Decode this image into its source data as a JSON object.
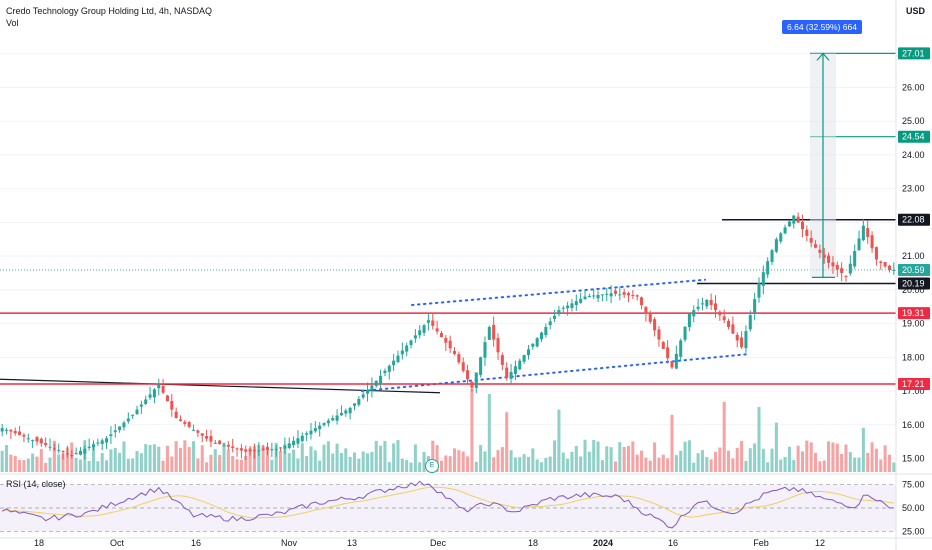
{
  "header": {
    "title": "Credo Technology Group Holding Ltd, 4h, NASDAQ",
    "volume_label": "Vol",
    "currency": "USD",
    "rsi_label": "RSI (14, close)"
  },
  "measure_box": {
    "label": "6.64 (32.59%) 664"
  },
  "earnings_marker": {
    "label": "E"
  },
  "colors": {
    "up": "#26a69a",
    "down": "#ef5350",
    "up_vol": "#8fd1c8",
    "down_vol": "#f5a3a3",
    "support": "#ef2b43",
    "channel": "#2962ff",
    "rsi": "#7e57c2",
    "rsi_ma": "#f0d060",
    "measure": "#2962ff",
    "target": "#089981"
  },
  "chart_data": {
    "type": "candlestick",
    "symbol": "Credo Technology Group Holding Ltd",
    "interval": "4h",
    "exchange": "NASDAQ",
    "y_axis": {
      "ticks": [
        15.0,
        16.0,
        17.0,
        18.0,
        19.0,
        20.0,
        21.0,
        22.0,
        23.0,
        24.0,
        25.0,
        26.0,
        27.0
      ],
      "range": [
        14.6,
        28.0
      ],
      "unit": "USD"
    },
    "x_axis": {
      "ticks": [
        "18",
        "Oct",
        "16",
        "Nov",
        "13",
        "Dec",
        "18",
        "2024",
        "16",
        "Feb",
        "12"
      ]
    },
    "price_tags": [
      {
        "value": "27.01",
        "style": "target"
      },
      {
        "value": "24.54",
        "style": "target"
      },
      {
        "value": "22.08",
        "style": "dark"
      },
      {
        "value": "20.59",
        "style": "current"
      },
      {
        "value": "20.19",
        "style": "dark"
      },
      {
        "value": "19.31",
        "style": "support"
      },
      {
        "value": "17.21",
        "style": "support"
      }
    ],
    "horizontal_levels": [
      {
        "value": 22.08,
        "style": "dark"
      },
      {
        "value": 20.19,
        "style": "dark"
      },
      {
        "value": 19.31,
        "style": "support"
      },
      {
        "value": 17.21,
        "style": "support"
      },
      {
        "value": 27.01,
        "style": "target"
      },
      {
        "value": 24.54,
        "style": "target"
      }
    ],
    "measure": {
      "from": 20.37,
      "to": 27.01,
      "change": 6.64,
      "percent": 32.59
    },
    "anchors": [
      {
        "i": 0,
        "p": 15.9
      },
      {
        "i": 8,
        "p": 15.5
      },
      {
        "i": 16,
        "p": 15.1
      },
      {
        "i": 24,
        "p": 15.6
      },
      {
        "i": 30,
        "p": 16.3
      },
      {
        "i": 36,
        "p": 17.2
      },
      {
        "i": 40,
        "p": 16.2
      },
      {
        "i": 48,
        "p": 15.5
      },
      {
        "i": 56,
        "p": 15.2
      },
      {
        "i": 64,
        "p": 15.3
      },
      {
        "i": 72,
        "p": 15.9
      },
      {
        "i": 80,
        "p": 16.5
      },
      {
        "i": 86,
        "p": 17.3
      },
      {
        "i": 92,
        "p": 18.2
      },
      {
        "i": 98,
        "p": 19.1
      },
      {
        "i": 104,
        "p": 18.1
      },
      {
        "i": 108,
        "p": 17.1
      },
      {
        "i": 112,
        "p": 18.9
      },
      {
        "i": 116,
        "p": 17.4
      },
      {
        "i": 122,
        "p": 18.4
      },
      {
        "i": 128,
        "p": 19.4
      },
      {
        "i": 134,
        "p": 19.8
      },
      {
        "i": 140,
        "p": 19.9
      },
      {
        "i": 146,
        "p": 19.8
      },
      {
        "i": 150,
        "p": 18.8
      },
      {
        "i": 154,
        "p": 17.7
      },
      {
        "i": 158,
        "p": 19.3
      },
      {
        "i": 162,
        "p": 19.7
      },
      {
        "i": 166,
        "p": 19.1
      },
      {
        "i": 170,
        "p": 18.3
      },
      {
        "i": 174,
        "p": 20.2
      },
      {
        "i": 178,
        "p": 21.5
      },
      {
        "i": 182,
        "p": 22.2
      },
      {
        "i": 186,
        "p": 21.4
      },
      {
        "i": 190,
        "p": 20.8
      },
      {
        "i": 194,
        "p": 20.4
      },
      {
        "i": 198,
        "p": 21.9
      },
      {
        "i": 201,
        "p": 20.9
      },
      {
        "i": 204,
        "p": 20.59
      }
    ],
    "volume_spikes": [
      {
        "i": 108,
        "v": 3.2
      },
      {
        "i": 112,
        "v": 3.0
      },
      {
        "i": 116,
        "v": 2.3
      },
      {
        "i": 128,
        "v": 2.4
      },
      {
        "i": 154,
        "v": 2.2
      },
      {
        "i": 166,
        "v": 2.7
      },
      {
        "i": 174,
        "v": 2.5
      },
      {
        "i": 178,
        "v": 1.9
      },
      {
        "i": 198,
        "v": 1.7
      }
    ],
    "rsi_axis": {
      "ticks": [
        25.0,
        50.0,
        75.0
      ],
      "range": [
        20,
        80
      ]
    },
    "rsi_anchors": [
      {
        "i": 0,
        "v": 48
      },
      {
        "i": 10,
        "v": 38
      },
      {
        "i": 20,
        "v": 45
      },
      {
        "i": 30,
        "v": 62
      },
      {
        "i": 36,
        "v": 71
      },
      {
        "i": 44,
        "v": 42
      },
      {
        "i": 54,
        "v": 38
      },
      {
        "i": 64,
        "v": 44
      },
      {
        "i": 72,
        "v": 55
      },
      {
        "i": 82,
        "v": 62
      },
      {
        "i": 92,
        "v": 74
      },
      {
        "i": 98,
        "v": 77
      },
      {
        "i": 106,
        "v": 47
      },
      {
        "i": 112,
        "v": 55
      },
      {
        "i": 118,
        "v": 46
      },
      {
        "i": 126,
        "v": 60
      },
      {
        "i": 134,
        "v": 64
      },
      {
        "i": 142,
        "v": 62
      },
      {
        "i": 148,
        "v": 44
      },
      {
        "i": 154,
        "v": 30
      },
      {
        "i": 160,
        "v": 58
      },
      {
        "i": 168,
        "v": 45
      },
      {
        "i": 176,
        "v": 66
      },
      {
        "i": 182,
        "v": 71
      },
      {
        "i": 190,
        "v": 58
      },
      {
        "i": 196,
        "v": 52
      },
      {
        "i": 199,
        "v": 66
      },
      {
        "i": 204,
        "v": 50
      }
    ]
  }
}
